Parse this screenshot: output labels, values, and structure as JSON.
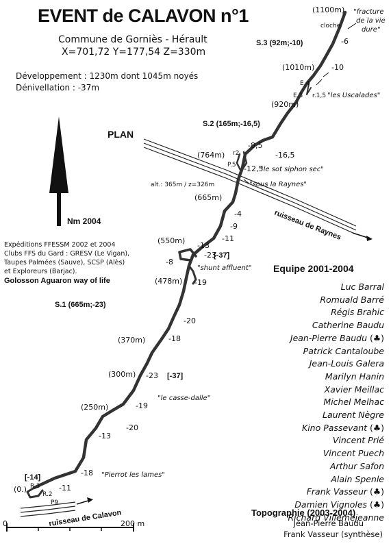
{
  "header": {
    "title": "EVENT de CALAVON n°1",
    "commune": "Commune de Gorniès - Hérault",
    "coords": "X=701,72   Y=177,54   Z=330m",
    "development": "Développement : 1230m dont 1045m noyés",
    "denivellation": "Dénivellation : -37m"
  },
  "plan_label": "PLAN",
  "north_label": "Nm 2004",
  "expeditions": [
    "Expéditions FFESSM 2002 et 2004",
    "Clubs FFS du Gard : GRESV (Le Vigan),",
    " Taupes Palmées (Sauve), SCSP (Alès)",
    "et Exploreurs (Barjac)."
  ],
  "golosson": "Golosson Aguaron way of life",
  "team": {
    "title": "Equipe 2001-2004",
    "members": [
      {
        "name": "Luc Barral",
        "icon": ""
      },
      {
        "name": "Romuald Barré",
        "icon": ""
      },
      {
        "name": "Régis Brahic",
        "icon": ""
      },
      {
        "name": "Catherine Baudu",
        "icon": ""
      },
      {
        "name": "Jean-Pierre Baudu",
        "icon": "(♣)"
      },
      {
        "name": "Patrick Cantaloube",
        "icon": ""
      },
      {
        "name": "Jean-Louis Galera",
        "icon": ""
      },
      {
        "name": "Marilyn Hanin",
        "icon": ""
      },
      {
        "name": "Xavier Meillac",
        "icon": ""
      },
      {
        "name": "Michel Melhac",
        "icon": ""
      },
      {
        "name": "Laurent Nègre",
        "icon": ""
      },
      {
        "name": "Kino Passevant",
        "icon": "(♣)"
      },
      {
        "name": "Vincent Prié",
        "icon": ""
      },
      {
        "name": "Vincent Puech",
        "icon": ""
      },
      {
        "name": "Arthur Safon",
        "icon": ""
      },
      {
        "name": "Alain Spenle",
        "icon": ""
      },
      {
        "name": "Frank Vasseur",
        "icon": "(♣)"
      },
      {
        "name": "Damien Vignoles",
        "icon": "(♣)"
      },
      {
        "name": "Richard Villemejeanne",
        "icon": ""
      }
    ]
  },
  "topography": {
    "title": "Topographie (2003-2004)",
    "lines": [
      "Jean-Pierre Baudu",
      "Frank Vasseur (synthèse)"
    ]
  },
  "scale": {
    "start": "0",
    "end": "200 m"
  },
  "map": {
    "sections": {
      "s1": "S.1 (665m;-23)",
      "s2": "S.2 (165m;-16,5)",
      "s3": "S.3 (92m;-10)"
    },
    "distances": [
      "(1100m)",
      "(1010m)",
      "(920m)",
      "(764m)",
      "(665m)",
      "(550m)",
      "(478m)",
      "(370m)",
      "(300m)",
      "(250m)",
      "(0.)"
    ],
    "depths": [
      "-6",
      "-10",
      "-8,5",
      "-16,5",
      "-12,5",
      "-4",
      "-9",
      "-11",
      "-13",
      "-23",
      "-8",
      "-19",
      "-20",
      "-18",
      "-23",
      "-19",
      "-20",
      "-13",
      "-18",
      "-11"
    ],
    "bracket_depths": [
      "[-37]",
      "[-37]",
      "[-14]"
    ],
    "stations": [
      "cloche",
      "E.4",
      "E.3",
      "r.1,5",
      "r2",
      "P.5",
      "R.3",
      "R.2",
      "P9"
    ],
    "places": {
      "fracture": [
        "\"fracture",
        "de la vie",
        "dure\""
      ],
      "uscalades": "\"les Uscalades\"",
      "siphon": "\"le sot siphon sec\"",
      "raynes_under": "\"sous la Raynes\"",
      "alt": "alt.: 365m / z=326m",
      "shunt": "\"shunt affluent\"",
      "cassedalle": "\"le casse-dalle\"",
      "pierrot": "\"Pierrot les lames\""
    },
    "streams": {
      "raynes": "ruisseau de Raynes",
      "calavon": "ruisseau de Calavon"
    }
  }
}
